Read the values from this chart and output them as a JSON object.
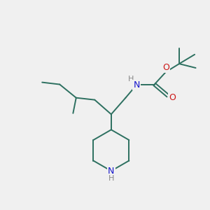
{
  "background_color": "#f0f0f0",
  "bond_color": "#2d7060",
  "n_color": "#1515cc",
  "o_color": "#cc1515",
  "h_color": "#888888",
  "bond_width": 1.4,
  "figsize": [
    3.0,
    3.0
  ],
  "dpi": 100,
  "xlim": [
    0,
    10
  ],
  "ylim": [
    0,
    10
  ]
}
